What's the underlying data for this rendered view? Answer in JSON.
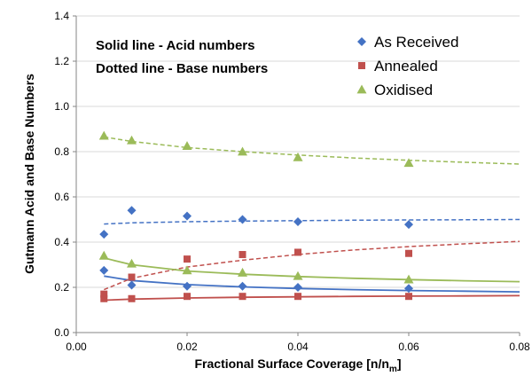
{
  "chart_data": {
    "type": "scatter",
    "xlabel": "Fractional Surface Coverage [n/n",
    "xlabel_sub": "m",
    "xlabel_close": "]",
    "ylabel": "Gutmann Acid and Base Numbers",
    "xlim": [
      0,
      0.08
    ],
    "ylim": [
      0,
      1.4
    ],
    "x_ticks": [
      "0.00",
      "0.02",
      "0.04",
      "0.06",
      "0.08"
    ],
    "y_ticks": [
      "0.0",
      "0.2",
      "0.4",
      "0.6",
      "0.8",
      "1.0",
      "1.2",
      "1.4"
    ],
    "x_tick_values": [
      0,
      0.02,
      0.04,
      0.06,
      0.08
    ],
    "y_tick_values": [
      0,
      0.2,
      0.4,
      0.6,
      0.8,
      1.0,
      1.2,
      1.4
    ],
    "grid": "horizontal",
    "legend_position": "top-right",
    "annotations": [
      "Solid line - Acid numbers",
      "Dotted line - Base numbers"
    ],
    "series": [
      {
        "name": "As Received",
        "color": "#4472c4",
        "marker": "diamond",
        "acid_points": {
          "x": [
            0.005,
            0.01,
            0.02,
            0.03,
            0.04,
            0.06
          ],
          "y": [
            0.275,
            0.21,
            0.205,
            0.205,
            0.2,
            0.195
          ]
        },
        "acid_fit": {
          "x": [
            0.005,
            0.01,
            0.02,
            0.03,
            0.04,
            0.05,
            0.06,
            0.07,
            0.08
          ],
          "y": [
            0.25,
            0.23,
            0.212,
            0.202,
            0.195,
            0.19,
            0.186,
            0.183,
            0.18
          ]
        },
        "base_points": {
          "x": [
            0.005,
            0.01,
            0.02,
            0.03,
            0.04,
            0.06
          ],
          "y": [
            0.435,
            0.54,
            0.515,
            0.5,
            0.49,
            0.478
          ]
        },
        "base_fit": {
          "x": [
            0.005,
            0.01,
            0.02,
            0.03,
            0.04,
            0.05,
            0.06,
            0.07,
            0.08
          ],
          "y": [
            0.48,
            0.485,
            0.49,
            0.493,
            0.495,
            0.497,
            0.498,
            0.499,
            0.5
          ]
        }
      },
      {
        "name": "Annealed",
        "color": "#c0504d",
        "marker": "square",
        "acid_points": {
          "x": [
            0.005,
            0.01,
            0.02,
            0.03,
            0.04,
            0.06
          ],
          "y": [
            0.15,
            0.15,
            0.16,
            0.16,
            0.16,
            0.16
          ]
        },
        "acid_fit": {
          "x": [
            0.005,
            0.01,
            0.02,
            0.03,
            0.04,
            0.05,
            0.06,
            0.07,
            0.08
          ],
          "y": [
            0.143,
            0.148,
            0.153,
            0.156,
            0.158,
            0.16,
            0.161,
            0.162,
            0.163
          ]
        },
        "base_points": {
          "x": [
            0.005,
            0.01,
            0.02,
            0.03,
            0.04,
            0.06
          ],
          "y": [
            0.17,
            0.245,
            0.325,
            0.345,
            0.355,
            0.35
          ]
        },
        "base_fit": {
          "x": [
            0.005,
            0.01,
            0.02,
            0.03,
            0.04,
            0.05,
            0.06,
            0.07,
            0.08
          ],
          "y": [
            0.19,
            0.24,
            0.29,
            0.32,
            0.345,
            0.365,
            0.38,
            0.392,
            0.403
          ]
        }
      },
      {
        "name": "Oxidised",
        "color": "#9bbb59",
        "marker": "triangle",
        "acid_points": {
          "x": [
            0.005,
            0.01,
            0.02,
            0.03,
            0.04,
            0.06
          ],
          "y": [
            0.34,
            0.305,
            0.275,
            0.265,
            0.25,
            0.235
          ]
        },
        "acid_fit": {
          "x": [
            0.005,
            0.01,
            0.02,
            0.03,
            0.04,
            0.05,
            0.06,
            0.07,
            0.08
          ],
          "y": [
            0.33,
            0.3,
            0.272,
            0.258,
            0.248,
            0.24,
            0.234,
            0.229,
            0.225
          ]
        },
        "base_points": {
          "x": [
            0.005,
            0.01,
            0.02,
            0.03,
            0.04,
            0.06
          ],
          "y": [
            0.87,
            0.85,
            0.825,
            0.8,
            0.775,
            0.75
          ]
        },
        "base_fit": {
          "x": [
            0.005,
            0.01,
            0.02,
            0.03,
            0.04,
            0.05,
            0.06,
            0.07,
            0.08
          ],
          "y": [
            0.865,
            0.845,
            0.818,
            0.8,
            0.785,
            0.772,
            0.762,
            0.753,
            0.745
          ]
        }
      }
    ]
  }
}
